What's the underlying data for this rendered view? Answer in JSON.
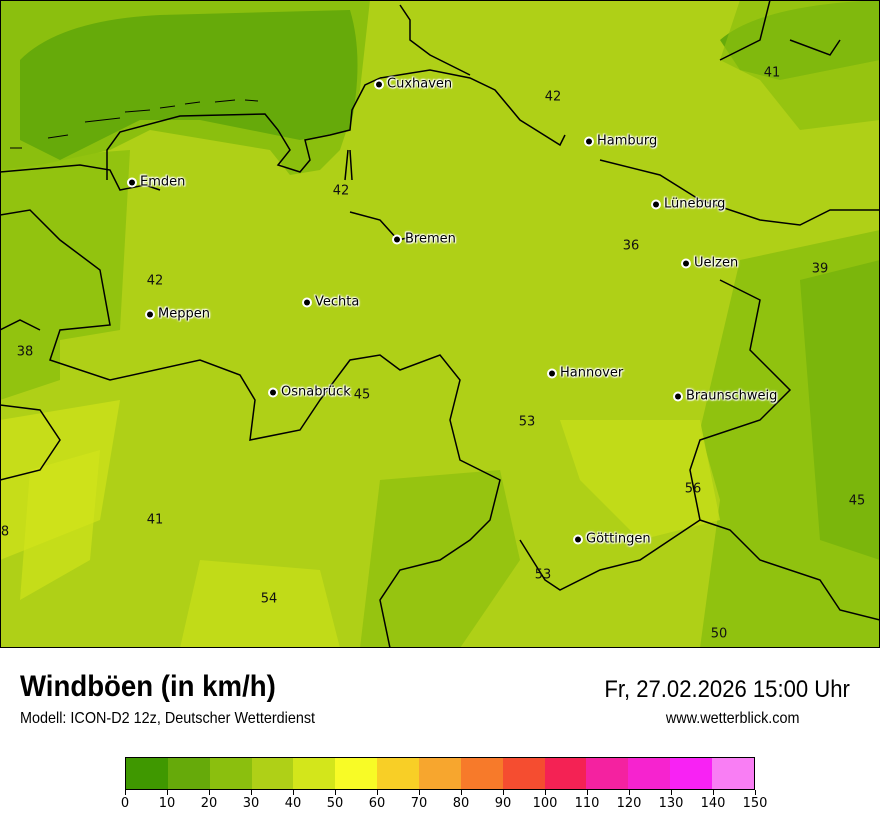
{
  "title": "Windböen (in km/h)",
  "subtitle": "Modell: ICON-D2 12z, Deutscher Wetterdienst",
  "datetime": "Fr, 27.02.2026 15:00 Uhr",
  "website": "www.wetterblick.com",
  "cities": [
    {
      "name": "Cuxhaven"
    },
    {
      "name": "Hamburg"
    },
    {
      "name": "Emden"
    },
    {
      "name": "Lüneburg"
    },
    {
      "name": "Bremen"
    },
    {
      "name": "Uelzen"
    },
    {
      "name": "Vechta"
    },
    {
      "name": "Meppen"
    },
    {
      "name": "Hannover"
    },
    {
      "name": "Osnabrück"
    },
    {
      "name": "Braunschweig"
    },
    {
      "name": "Göttingen"
    }
  ],
  "values": [
    "42",
    "41",
    "42",
    "36",
    "39",
    "42",
    "38",
    "45",
    "53",
    "56",
    "45",
    "41",
    "8",
    "53",
    "54",
    "50"
  ],
  "legend": {
    "ticks": [
      "0",
      "10",
      "20",
      "30",
      "40",
      "50",
      "60",
      "70",
      "80",
      "90",
      "100",
      "110",
      "120",
      "130",
      "140",
      "150"
    ],
    "colors": [
      "#3f9800",
      "#66aa0a",
      "#8bbf0e",
      "#afd017",
      "#d3e61b",
      "#f8fb26",
      "#f8cf26",
      "#f7a62e",
      "#f77a2a",
      "#f54d30",
      "#f42254",
      "#f422a0",
      "#f623cf",
      "#f822f4",
      "#f97ef4"
    ]
  }
}
